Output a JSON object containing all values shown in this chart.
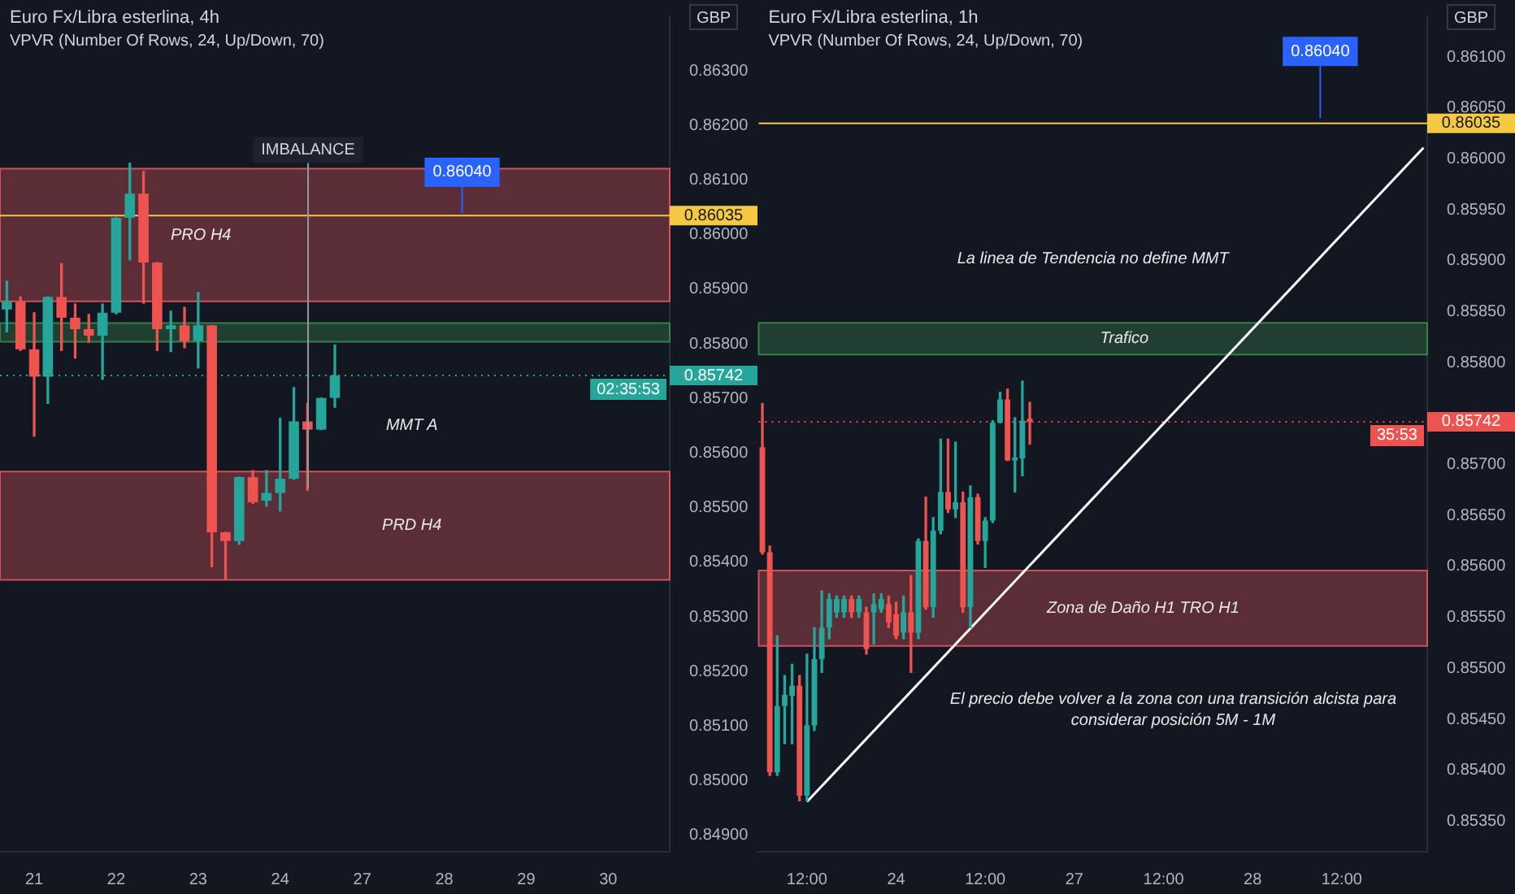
{
  "chart_data": [
    {
      "type": "candlestick",
      "title": "Euro Fx/Libra esterlina, 4h",
      "subtitle": "VPVR (Number Of Rows, 24, Up/Down, 70)",
      "ylabel": "GBP",
      "categories": [
        null,
        null,
        "21",
        null,
        null,
        null,
        null,
        null,
        "22",
        null,
        null,
        null,
        null,
        null,
        "23",
        null,
        null,
        null,
        null,
        null,
        "24",
        null,
        null,
        null,
        null,
        null,
        "27",
        null,
        null,
        null,
        null,
        null,
        "28",
        null,
        null,
        null,
        null,
        null,
        "29",
        null,
        null,
        null,
        null,
        null,
        "30",
        null,
        null,
        null,
        null
      ],
      "ohlc": [
        [
          0.85863,
          0.85915,
          0.85822,
          0.85878
        ],
        [
          0.85877,
          0.85886,
          0.85788,
          0.8579
        ],
        [
          0.8579,
          0.85857,
          0.85631,
          0.8574
        ],
        [
          0.8574,
          0.85886,
          0.85691,
          0.85886
        ],
        [
          0.85886,
          0.85947,
          0.85788,
          0.85848
        ],
        [
          0.85848,
          0.85873,
          0.85774,
          0.85827
        ],
        [
          0.85827,
          0.85854,
          0.85803,
          0.85815
        ],
        [
          0.85815,
          0.85873,
          0.85735,
          0.85857
        ],
        [
          0.85857,
          0.86031,
          0.85855,
          0.86031
        ],
        [
          0.86031,
          0.86131,
          0.85954,
          0.86075
        ],
        [
          0.86075,
          0.86116,
          0.85875,
          0.85949
        ],
        [
          0.85949,
          0.85949,
          0.85788,
          0.85827
        ],
        [
          0.85827,
          0.8586,
          0.85786,
          0.85834
        ],
        [
          0.85834,
          0.85867,
          0.85793,
          0.85805
        ],
        [
          0.85805,
          0.85894,
          0.85756,
          0.85834
        ],
        [
          0.85834,
          0.85834,
          0.85392,
          0.85455
        ],
        [
          0.85455,
          0.85455,
          0.85368,
          0.85439
        ],
        [
          0.85439,
          0.85556,
          0.85433,
          0.85556
        ],
        [
          0.85556,
          0.85568,
          0.85508,
          0.8551
        ],
        [
          0.85513,
          0.85568,
          0.85503,
          0.85527
        ],
        [
          0.85527,
          0.85664,
          0.85494,
          0.85553
        ],
        [
          0.85553,
          0.8572,
          0.85552,
          0.85658
        ],
        [
          0.85658,
          0.85691,
          0.85532,
          0.85643
        ],
        [
          0.85643,
          0.85701,
          0.85643,
          0.85701
        ],
        [
          0.85701,
          0.85798,
          0.85684,
          0.85742
        ],
        null,
        null,
        null,
        null,
        null,
        null,
        null,
        null,
        null,
        null,
        null,
        null,
        null,
        null,
        null,
        null,
        null,
        null,
        null,
        null,
        null,
        null,
        null,
        null
      ],
      "colors": [
        "#26a69a",
        "#ef5350",
        "#ef5350",
        "#26a69a",
        "#ef5350",
        "#ef5350",
        "#ef5350",
        "#26a69a",
        "#26a69a",
        "#26a69a",
        "#ef5350",
        "#ef5350",
        "#26a69a",
        "#ef5350",
        "#26a69a",
        "#ef5350",
        "#ef5350",
        "#26a69a",
        "#ef5350",
        "#26a69a",
        "#26a69a",
        "#26a69a",
        "#ef5350",
        "#26a69a",
        "#26a69a",
        null,
        null,
        null,
        null,
        null,
        null,
        null,
        null,
        null,
        null,
        null,
        null,
        null,
        null,
        null,
        null,
        null,
        null,
        null,
        null,
        null,
        null,
        null,
        null
      ],
      "ylim": [
        0.8487,
        0.864
      ],
      "yticks": [
        {
          "value": 0.849,
          "label": "0.84900"
        },
        {
          "value": 0.85,
          "label": "0.85000"
        },
        {
          "value": 0.851,
          "label": "0.85100"
        },
        {
          "value": 0.852,
          "label": "0.85200"
        },
        {
          "value": 0.853,
          "label": "0.85300"
        },
        {
          "value": 0.854,
          "label": "0.85400"
        },
        {
          "value": 0.855,
          "label": "0.85500"
        },
        {
          "value": 0.856,
          "label": "0.85600"
        },
        {
          "value": 0.857,
          "label": "0.85700"
        },
        {
          "value": 0.858,
          "label": "0.85800"
        },
        {
          "value": 0.859,
          "label": "0.85900"
        },
        {
          "value": 0.86,
          "label": "0.86000"
        },
        {
          "value": 0.861,
          "label": "0.86100"
        },
        {
          "value": 0.862,
          "label": "0.86200"
        },
        {
          "value": 0.863,
          "label": "0.86300"
        }
      ],
      "ref_lines": [
        {
          "axis": "y",
          "value": 0.86035,
          "label": "0.86035",
          "color": "#f5c842"
        },
        {
          "axis": "y",
          "value": 0.85742,
          "label": "0.85742",
          "color": "#26a69a",
          "line_style": "dotted"
        }
      ],
      "bands": [
        {
          "axis": "y",
          "from": 0.85878,
          "to": 0.86121,
          "label": "PRO H4",
          "color": "#e0575f"
        },
        {
          "axis": "y",
          "from": 0.85804,
          "to": 0.85838,
          "color": "#3a8a4a"
        },
        {
          "axis": "y",
          "from": 0.85368,
          "to": 0.85566,
          "label": "PRD H4",
          "color": "#e0575f"
        }
      ],
      "annotations": [
        "IMBALANCE",
        {
          "text": "0.86040",
          "y": 0.8604
        },
        "MMT A",
        "02:35:53"
      ]
    },
    {
      "type": "candlestick",
      "title": "Euro Fx/Libra esterlina, 1h",
      "subtitle": "VPVR (Number Of Rows, 24, Up/Down, 70)",
      "ylabel": "GBP",
      "categories": [
        null,
        null,
        null,
        null,
        null,
        null,
        "12:00",
        null,
        null,
        null,
        null,
        null,
        null,
        null,
        null,
        null,
        null,
        null,
        "24",
        null,
        null,
        null,
        null,
        null,
        null,
        null,
        null,
        null,
        null,
        null,
        "12:00",
        null,
        null,
        null,
        null,
        null,
        null,
        null,
        null,
        null,
        null,
        null,
        "27",
        null,
        null,
        null,
        null,
        null,
        null,
        null,
        null,
        null,
        null,
        null,
        "12:00",
        null,
        null,
        null,
        null,
        null,
        null,
        null,
        null,
        null,
        null,
        null,
        "28",
        null,
        null,
        null,
        null,
        null,
        null,
        null,
        null,
        null,
        null,
        null,
        "12:00",
        null,
        null,
        null,
        null,
        null,
        null,
        null,
        null,
        null,
        null,
        null
      ],
      "ohlc": [
        [
          0.85717,
          0.8576,
          0.85612,
          0.85614
        ],
        [
          0.85614,
          0.8562,
          0.85395,
          0.85398
        ],
        [
          0.85398,
          0.85532,
          0.85395,
          0.85463
        ],
        [
          0.85463,
          0.85493,
          0.85426,
          0.85474
        ],
        [
          0.85473,
          0.85504,
          0.85426,
          0.85483
        ],
        [
          0.85483,
          0.85493,
          0.8537,
          0.85375
        ],
        [
          0.85375,
          0.85514,
          0.8537,
          0.85444
        ],
        [
          0.85444,
          0.8554,
          0.85439,
          0.85509
        ],
        [
          0.85509,
          0.85576,
          0.85496,
          0.8554
        ],
        [
          0.8554,
          0.85573,
          0.85529,
          0.85568
        ],
        [
          0.85555,
          0.85571,
          0.8555,
          0.85568
        ],
        [
          0.85555,
          0.85571,
          0.8555,
          0.85568
        ],
        [
          0.85568,
          0.85571,
          0.8555,
          0.85555
        ],
        [
          0.85555,
          0.85571,
          0.8555,
          0.85568
        ],
        [
          0.85555,
          0.8556,
          0.85514,
          0.85519
        ],
        [
          0.85555,
          0.85573,
          0.85524,
          0.85563
        ],
        [
          0.85558,
          0.85573,
          0.85555,
          0.85568
        ],
        [
          0.85563,
          0.85571,
          0.8554,
          0.85545
        ],
        [
          0.85553,
          0.85565,
          0.85529,
          0.85532
        ],
        [
          0.85535,
          0.85571,
          0.85529,
          0.85555
        ],
        [
          0.85555,
          0.85591,
          0.85496,
          0.85535
        ],
        [
          0.85535,
          0.85627,
          0.85529,
          0.85625
        ],
        [
          0.85625,
          0.85668,
          0.85558,
          0.8556
        ],
        [
          0.8556,
          0.85648,
          0.8555,
          0.85635
        ],
        [
          0.85635,
          0.85725,
          0.85632,
          0.85673
        ],
        [
          0.85673,
          0.85725,
          0.85653,
          0.85656
        ],
        [
          0.85656,
          0.85722,
          0.85648,
          0.85663
        ],
        [
          0.85663,
          0.85673,
          0.85555,
          0.8556
        ],
        [
          0.8556,
          0.85679,
          0.8554,
          0.85668
        ],
        [
          0.85668,
          0.85671,
          0.85622,
          0.85625
        ],
        [
          0.85625,
          0.85648,
          0.85599,
          0.85645
        ],
        [
          0.85645,
          0.85743,
          0.85643,
          0.85741
        ],
        [
          0.85741,
          0.85771,
          0.85741,
          0.85764
        ],
        [
          0.85764,
          0.85774,
          0.85704,
          0.85704
        ],
        [
          0.85704,
          0.85746,
          0.85673,
          0.85707
        ],
        [
          0.85706,
          0.85782,
          0.85689,
          0.85743
        ],
        [
          0.85745,
          0.85761,
          0.8572,
          0.85742
        ],
        null,
        null,
        null,
        null,
        null,
        null,
        null,
        null,
        null,
        null,
        null,
        null,
        null,
        null,
        null,
        null,
        null,
        null,
        null,
        null,
        null,
        null,
        null,
        null,
        null,
        null,
        null,
        null,
        null,
        null,
        null,
        null,
        null,
        null,
        null,
        null,
        null,
        null,
        null,
        null,
        null,
        null,
        null,
        null,
        null,
        null,
        null,
        null,
        null,
        null,
        null,
        null,
        null
      ],
      "colors": [
        "#ef5350",
        "#ef5350",
        "#26a69a",
        "#26a69a",
        "#26a69a",
        "#ef5350",
        "#26a69a",
        "#26a69a",
        "#26a69a",
        "#26a69a",
        "#26a69a",
        "#26a69a",
        "#ef5350",
        "#26a69a",
        "#ef5350",
        "#26a69a",
        "#26a69a",
        "#ef5350",
        "#ef5350",
        "#26a69a",
        "#ef5350",
        "#26a69a",
        "#ef5350",
        "#26a69a",
        "#26a69a",
        "#ef5350",
        "#26a69a",
        "#ef5350",
        "#26a69a",
        "#ef5350",
        "#26a69a",
        "#26a69a",
        "#26a69a",
        "#ef5350",
        "#26a69a",
        "#26a69a",
        "#ef5350",
        null,
        null,
        null,
        null,
        null,
        null,
        null,
        null,
        null,
        null,
        null,
        null,
        null,
        null,
        null,
        null,
        null,
        null,
        null,
        null,
        null,
        null,
        null,
        null,
        null,
        null,
        null,
        null,
        null,
        null,
        null,
        null,
        null,
        null,
        null,
        null,
        null,
        null,
        null,
        null,
        null,
        null,
        null,
        null,
        null,
        null,
        null,
        null,
        null,
        null,
        null,
        null,
        null
      ],
      "series": [
        {
          "type": "line",
          "color": "#ffffff",
          "values": [
            null,
            null,
            null,
            null,
            null,
            null,
            0.85369,
            null,
            null,
            null,
            null,
            null,
            null,
            null,
            null,
            null,
            null,
            null,
            null,
            null,
            null,
            null,
            null,
            null,
            null,
            null,
            null,
            null,
            null,
            null,
            null,
            null,
            null,
            null,
            null,
            null,
            null,
            null,
            null,
            null,
            null,
            null,
            null,
            null,
            null,
            null,
            null,
            null,
            null,
            null,
            null,
            null,
            null,
            null,
            null,
            null,
            null,
            null,
            null,
            null,
            null,
            null,
            null,
            null,
            null,
            null,
            null,
            null,
            null,
            null,
            null,
            null,
            null,
            null,
            null,
            null,
            null,
            null,
            null,
            null,
            null,
            null,
            null,
            null,
            null,
            null,
            null,
            null,
            null,
            0.86011
          ]
        }
      ],
      "ylim": [
        0.8532,
        0.8614
      ],
      "yticks": [
        {
          "value": 0.8535,
          "label": "0.85350"
        },
        {
          "value": 0.854,
          "label": "0.85400"
        },
        {
          "value": 0.8545,
          "label": "0.85450"
        },
        {
          "value": 0.855,
          "label": "0.85500"
        },
        {
          "value": 0.8555,
          "label": "0.85550"
        },
        {
          "value": 0.856,
          "label": "0.85600"
        },
        {
          "value": 0.8565,
          "label": "0.85650"
        },
        {
          "value": 0.857,
          "label": "0.85700"
        },
        {
          "value": 0.858,
          "label": "0.85800"
        },
        {
          "value": 0.8585,
          "label": "0.85850"
        },
        {
          "value": 0.859,
          "label": "0.85900"
        },
        {
          "value": 0.8595,
          "label": "0.85950"
        },
        {
          "value": 0.86,
          "label": "0.86000"
        },
        {
          "value": 0.8605,
          "label": "0.86050"
        },
        {
          "value": 0.861,
          "label": "0.86100"
        }
      ],
      "ref_lines": [
        {
          "axis": "y",
          "value": 0.86035,
          "label": "0.86035",
          "color": "#f5c842"
        },
        {
          "axis": "y",
          "value": 0.85742,
          "label": "0.85742",
          "color": "#ef5350",
          "line_style": "dotted"
        }
      ],
      "bands": [
        {
          "axis": "y",
          "from": 0.85808,
          "to": 0.85839,
          "label": "Trafico",
          "color": "#3a8a4a"
        },
        {
          "axis": "y",
          "from": 0.85522,
          "to": 0.85596,
          "label": "Zona de Daño H1 TRO H1",
          "color": "#e0575f"
        }
      ],
      "annotations": [
        "La linea de Tendencia no define MMT",
        "El precio debe volver a la zona con una transición alcista para considerar posición 5M - 1M",
        {
          "text": "0.86040",
          "y": 0.8604
        },
        "35:53"
      ]
    }
  ]
}
